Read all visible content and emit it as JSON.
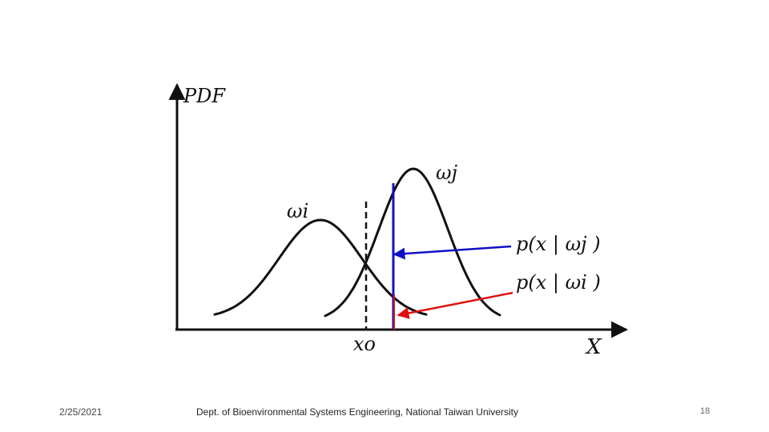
{
  "figure": {
    "y_axis_label": "PDF",
    "x_axis_label": "X",
    "curve_i_label": "ωi",
    "curve_j_label": "ωj",
    "threshold_label": "xo",
    "label_p_j": "p(x | ωj )",
    "label_p_i": "p(x | ωi )",
    "colors": {
      "curve": "#111111",
      "blue_line": "#1010c8",
      "red_line": "#e01010",
      "axis": "#111111"
    }
  },
  "footer": {
    "date": "2/25/2021",
    "center": "Dept. of Bioenvironmental Systems Engineering, National Taiwan University",
    "page": "18"
  }
}
